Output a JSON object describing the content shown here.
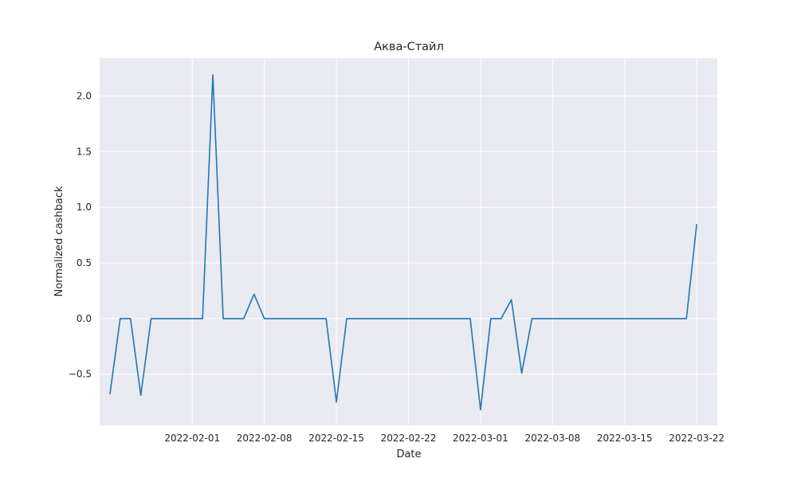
{
  "chart_data": {
    "type": "line",
    "title": "Аква-Стайл",
    "xlabel": "Date",
    "ylabel": "Normalized cashback",
    "x_tick_labels": [
      "2022-02-01",
      "2022-02-08",
      "2022-02-15",
      "2022-02-22",
      "2022-03-01",
      "2022-03-08",
      "2022-03-15",
      "2022-03-22"
    ],
    "y_tick_labels": [
      "−0.5",
      "0.0",
      "0.5",
      "1.0",
      "1.5",
      "2.0"
    ],
    "y_tick_values": [
      -0.5,
      0.0,
      0.5,
      1.0,
      1.5,
      2.0
    ],
    "xlim": [
      "2022-01-23",
      "2022-03-24"
    ],
    "ylim": [
      -0.96,
      2.34
    ],
    "grid": true,
    "legend": "none",
    "colors": {
      "background": "#eaeaf2",
      "grid": "#ffffff",
      "line": "#1f77b4"
    },
    "series": [
      {
        "x": [
          "2022-01-24",
          "2022-01-25",
          "2022-01-26",
          "2022-01-27",
          "2022-01-28",
          "2022-01-29",
          "2022-01-30",
          "2022-01-31",
          "2022-02-01",
          "2022-02-02",
          "2022-02-03",
          "2022-02-04",
          "2022-02-05",
          "2022-02-06",
          "2022-02-07",
          "2022-02-08",
          "2022-02-09",
          "2022-02-10",
          "2022-02-11",
          "2022-02-12",
          "2022-02-13",
          "2022-02-14",
          "2022-02-15",
          "2022-02-16",
          "2022-02-17",
          "2022-02-18",
          "2022-02-19",
          "2022-02-20",
          "2022-02-21",
          "2022-02-22",
          "2022-02-23",
          "2022-02-24",
          "2022-02-25",
          "2022-02-26",
          "2022-02-27",
          "2022-02-28",
          "2022-03-01",
          "2022-03-02",
          "2022-03-03",
          "2022-03-04",
          "2022-03-05",
          "2022-03-06",
          "2022-03-07",
          "2022-03-08",
          "2022-03-09",
          "2022-03-10",
          "2022-03-11",
          "2022-03-12",
          "2022-03-13",
          "2022-03-14",
          "2022-03-15",
          "2022-03-16",
          "2022-03-17",
          "2022-03-18",
          "2022-03-19",
          "2022-03-20",
          "2022-03-21",
          "2022-03-22"
        ],
        "values": [
          -0.68,
          0,
          0,
          -0.69,
          0,
          0,
          0,
          0,
          0,
          0,
          2.19,
          0,
          0,
          0,
          0.22,
          0,
          0,
          0,
          0,
          0,
          0,
          0,
          -0.75,
          0,
          0,
          0,
          0,
          0,
          0,
          0,
          0,
          0,
          0,
          0,
          0,
          0,
          -0.82,
          0,
          0,
          0.17,
          -0.49,
          0,
          0,
          0,
          0,
          0,
          0,
          0,
          0,
          0,
          0,
          0,
          0,
          0,
          0,
          0,
          0,
          0.85
        ]
      }
    ]
  }
}
